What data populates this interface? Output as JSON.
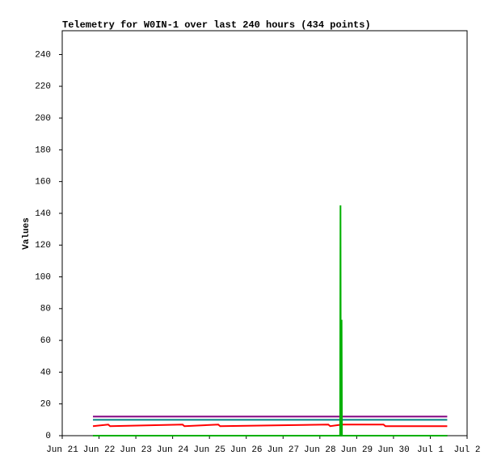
{
  "chart_data": {
    "type": "line",
    "title": "Telemetry for W0IN-1 over last 240 hours (434 points)",
    "y_label": "Values",
    "xlim": [
      0,
      11
    ],
    "xticks": [
      {
        "value": 0,
        "label": "Jun 21"
      },
      {
        "value": 1,
        "label": "Jun 22"
      },
      {
        "value": 2,
        "label": "Jun 23"
      },
      {
        "value": 3,
        "label": "Jun 24"
      },
      {
        "value": 4,
        "label": "Jun 25"
      },
      {
        "value": 5,
        "label": "Jun 26"
      },
      {
        "value": 6,
        "label": "Jun 27"
      },
      {
        "value": 7,
        "label": "Jun 28"
      },
      {
        "value": 8,
        "label": "Jun 29"
      },
      {
        "value": 9,
        "label": "Jun 30"
      },
      {
        "value": 10,
        "label": "Jul 1"
      },
      {
        "value": 11,
        "label": "Jul 2"
      }
    ],
    "ylim": [
      0,
      255
    ],
    "yticks": [
      0,
      20,
      40,
      60,
      80,
      100,
      120,
      140,
      160,
      180,
      200,
      220,
      240
    ],
    "series": [
      {
        "color": "#800080",
        "x": [
          0.835,
          10.46
        ],
        "values": [
          12,
          12
        ]
      },
      {
        "color": "#008080",
        "x": [
          0.835,
          10.46
        ],
        "values": [
          10,
          10
        ]
      },
      {
        "color": "#000000",
        "x": [
          0.835,
          10.46
        ],
        "values": [
          0,
          0
        ]
      },
      {
        "color": "#ff0000",
        "x": [
          0.835,
          1.25,
          1.3,
          3.27,
          3.32,
          4.24,
          4.29,
          7.23,
          7.28,
          7.6,
          8.73,
          8.78,
          10.46
        ],
        "values": [
          6,
          7,
          6,
          7,
          6,
          7,
          6,
          7,
          6,
          7,
          7,
          6,
          6
        ]
      },
      {
        "color": "#00b000",
        "x": [
          0.835,
          7.55,
          7.56,
          7.57,
          7.59,
          7.6,
          10.46
        ],
        "values": [
          0,
          0,
          145,
          0,
          73,
          0,
          0
        ]
      }
    ]
  }
}
